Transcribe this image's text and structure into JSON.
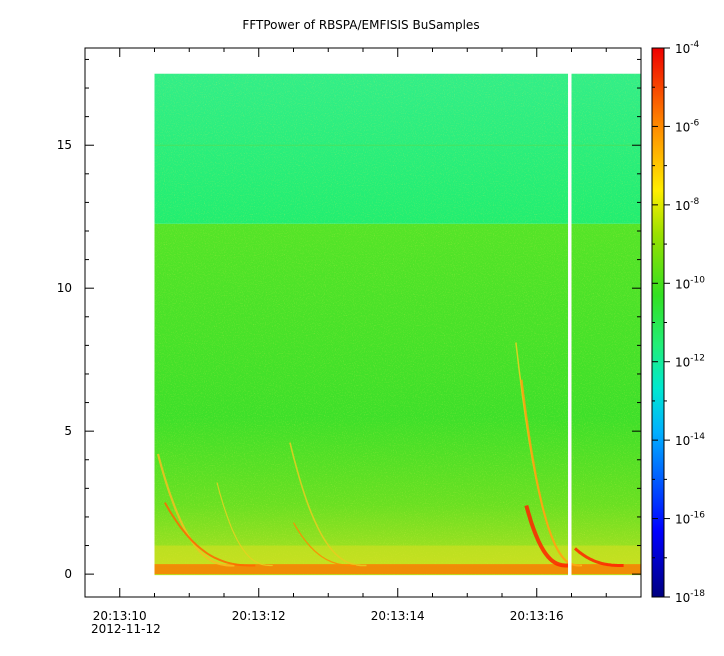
{
  "chart_data": {
    "type": "heatmap",
    "title": "FFTPower of RBSPA/EMFISIS  BuSamples",
    "xlabel": "",
    "ylabel": "",
    "x_ticks": [
      {
        "seconds": 10,
        "label": "20:13:10"
      },
      {
        "seconds": 12,
        "label": "20:13:12"
      },
      {
        "seconds": 14,
        "label": "20:13:14"
      },
      {
        "seconds": 16,
        "label": "20:13:16"
      }
    ],
    "x_date_label": "2012-11-12",
    "xlim": [
      9.5,
      17.5
    ],
    "ylim": [
      -0.8,
      18.4
    ],
    "y_ticks": [
      0,
      5,
      10,
      15
    ],
    "data_extent": {
      "x": [
        10.5,
        17.5
      ],
      "y": [
        0,
        17.5
      ]
    },
    "data_gap": {
      "x": [
        16.45,
        16.5
      ]
    },
    "colorbar": {
      "scale": "log",
      "range": [
        1e-18,
        0.0001
      ],
      "ticks": [
        {
          "value": -4,
          "base": "10",
          "exp": "-4"
        },
        {
          "value": -6,
          "base": "10",
          "exp": "-6"
        },
        {
          "value": -8,
          "base": "10",
          "exp": "-8"
        },
        {
          "value": -10,
          "base": "10",
          "exp": "-10"
        },
        {
          "value": -12,
          "base": "10",
          "exp": "-12"
        },
        {
          "value": -14,
          "base": "10",
          "exp": "-14"
        },
        {
          "value": -16,
          "base": "10",
          "exp": "-16"
        },
        {
          "value": -18,
          "base": "10",
          "exp": "-18"
        }
      ]
    },
    "colors": {
      "upper_band": "#22ee77",
      "middle_band": "#44e022",
      "low_band": "#88e022",
      "emission": "#ff3300"
    }
  }
}
